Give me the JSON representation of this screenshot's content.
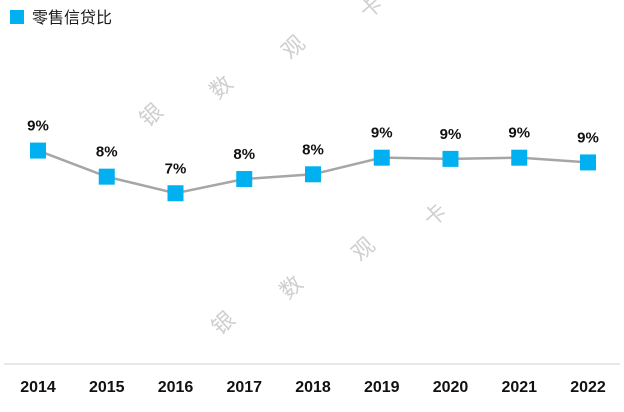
{
  "chart_data": {
    "type": "line",
    "categories": [
      "2014",
      "2015",
      "2016",
      "2017",
      "2018",
      "2019",
      "2020",
      "2021",
      "2022"
    ],
    "series": [
      {
        "name": "零售信贷比",
        "values": [
          9.0,
          7.9,
          7.2,
          7.8,
          8.0,
          8.7,
          8.65,
          8.7,
          8.5
        ],
        "labels": [
          "9%",
          "8%",
          "7%",
          "8%",
          "8%",
          "9%",
          "9%",
          "9%",
          "9%"
        ]
      }
    ],
    "ylim": [
      0,
      14
    ],
    "grid": false,
    "legend": "top-left"
  },
  "colors": {
    "line": "#a6a6a6",
    "marker": "#00b0f0",
    "axis": "#d0d0d0"
  },
  "watermark": {
    "chars": [
      "卡",
      "观",
      "数",
      "银",
      "卡",
      "观",
      "数",
      "银"
    ]
  }
}
